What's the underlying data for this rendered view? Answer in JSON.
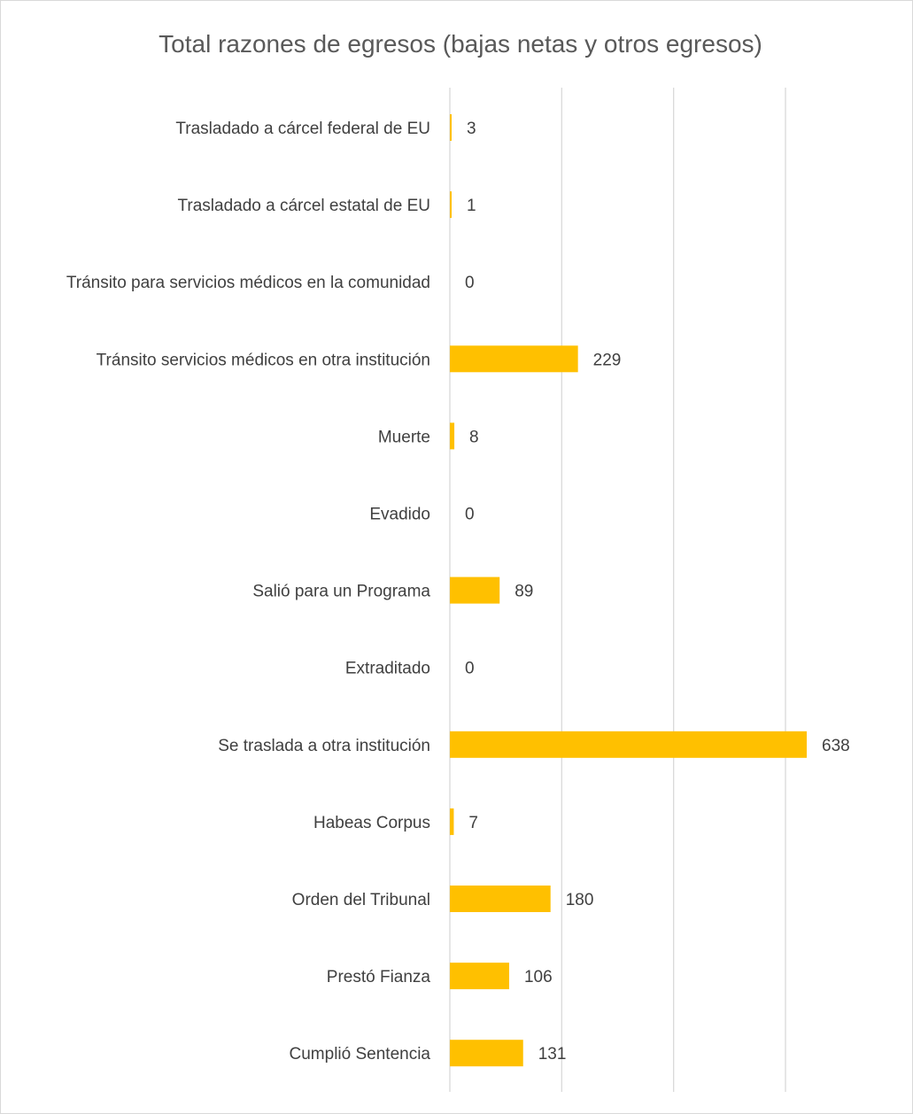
{
  "chart_data": {
    "type": "bar",
    "orientation": "horizontal",
    "title": "Total razones de egresos (bajas netas y otros egresos)",
    "xlabel": "",
    "ylabel": "",
    "categories": [
      "Trasladado a cárcel federal de EU",
      "Trasladado a cárcel estatal de EU",
      "Tránsito para servicios médicos en la comunidad",
      "Tránsito servicios médicos en otra institución",
      "Muerte",
      "Evadido",
      "Salió para un Programa",
      "Extraditado",
      "Se traslada a otra institución",
      "Habeas Corpus",
      "Orden del Tribunal",
      "Prestó Fianza",
      "Cumplió Sentencia"
    ],
    "values": [
      3,
      1,
      0,
      229,
      8,
      0,
      89,
      0,
      638,
      7,
      180,
      106,
      131
    ],
    "data_labels": [
      "3",
      "1",
      "0",
      "229",
      "8",
      "0",
      "89",
      "0",
      "638",
      "7",
      "180",
      "106",
      "131"
    ],
    "xlim": [
      0,
      700
    ],
    "gridlines": [
      0,
      200,
      400,
      600
    ],
    "grid": true,
    "legend": "none",
    "colors": {
      "bar": "#FFC000",
      "grid": "#D9D9D9",
      "title": "#595959",
      "text": "#404040",
      "border": "#D9D9D9"
    }
  }
}
